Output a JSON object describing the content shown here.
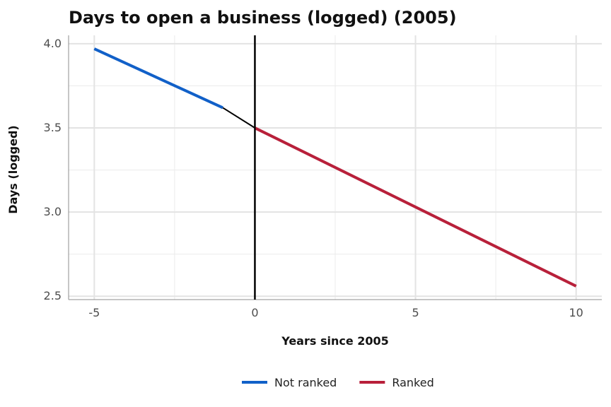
{
  "chart_data": {
    "type": "line",
    "title": "Days to open a business (logged) (2005)",
    "xlabel": "Years since 2005",
    "ylabel": "Days (logged)",
    "xlim": [
      -5.8,
      10.8
    ],
    "ylim": [
      2.48,
      4.05
    ],
    "x_ticks": [
      -5,
      0,
      5,
      10
    ],
    "y_ticks": [
      2.5,
      3.0,
      3.5,
      4.0
    ],
    "x_tick_labels": [
      "-5",
      "0",
      "5",
      "10"
    ],
    "y_tick_labels": [
      "2.5",
      "3.0",
      "3.5",
      "4.0"
    ],
    "grid": true,
    "legend_position": "bottom",
    "series": [
      {
        "name": "Not ranked",
        "color": "#1160c8",
        "x": [
          -5,
          -1
        ],
        "y": [
          3.97,
          3.62
        ]
      },
      {
        "name": "Ranked",
        "color": "#b8203a",
        "x": [
          0,
          10
        ],
        "y": [
          3.5,
          2.56
        ]
      }
    ],
    "connector": {
      "color": "#000000",
      "x": [
        -1,
        0
      ],
      "y": [
        3.62,
        3.5
      ]
    },
    "reference_line": {
      "x": 0,
      "color": "#000000"
    }
  }
}
